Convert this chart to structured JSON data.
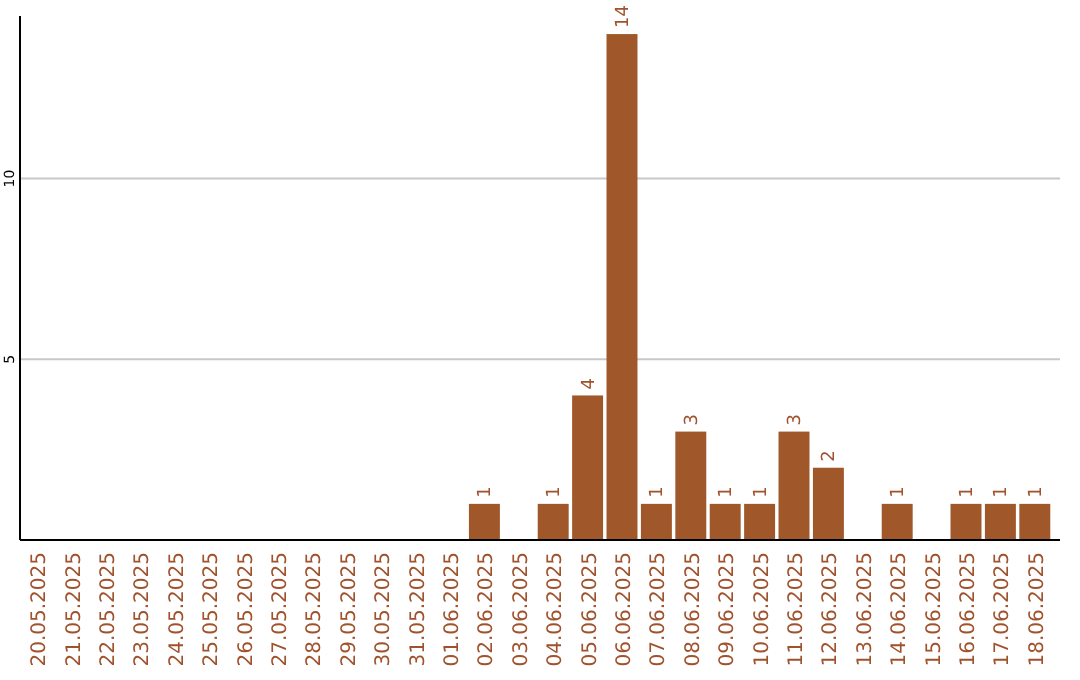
{
  "chart_data": {
    "type": "bar",
    "categories": [
      "20.05.2025",
      "21.05.2025",
      "22.05.2025",
      "23.05.2025",
      "24.05.2025",
      "25.05.2025",
      "26.05.2025",
      "27.05.2025",
      "28.05.2025",
      "29.05.2025",
      "30.05.2025",
      "31.05.2025",
      "01.06.2025",
      "02.06.2025",
      "03.06.2025",
      "04.06.2025",
      "05.06.2025",
      "06.06.2025",
      "07.06.2025",
      "08.06.2025",
      "09.06.2025",
      "10.06.2025",
      "11.06.2025",
      "12.06.2025",
      "13.06.2025",
      "14.06.2025",
      "15.06.2025",
      "16.06.2025",
      "17.06.2025",
      "18.06.2025"
    ],
    "values": [
      0,
      0,
      0,
      0,
      0,
      0,
      0,
      0,
      0,
      0,
      0,
      0,
      0,
      1,
      0,
      1,
      4,
      14,
      1,
      3,
      1,
      1,
      3,
      2,
      0,
      1,
      0,
      1,
      1,
      1
    ],
    "value_labels": [
      null,
      null,
      null,
      null,
      null,
      null,
      null,
      null,
      null,
      null,
      null,
      null,
      null,
      "1",
      null,
      "1",
      "4",
      "14",
      "1",
      "3",
      "1",
      "1",
      "3",
      "2",
      null,
      "1",
      null,
      "1",
      "1",
      "1"
    ],
    "color": "#a0582a",
    "ylim": [
      0,
      14.5
    ],
    "yticks": [
      5,
      10
    ],
    "grid": "y"
  }
}
